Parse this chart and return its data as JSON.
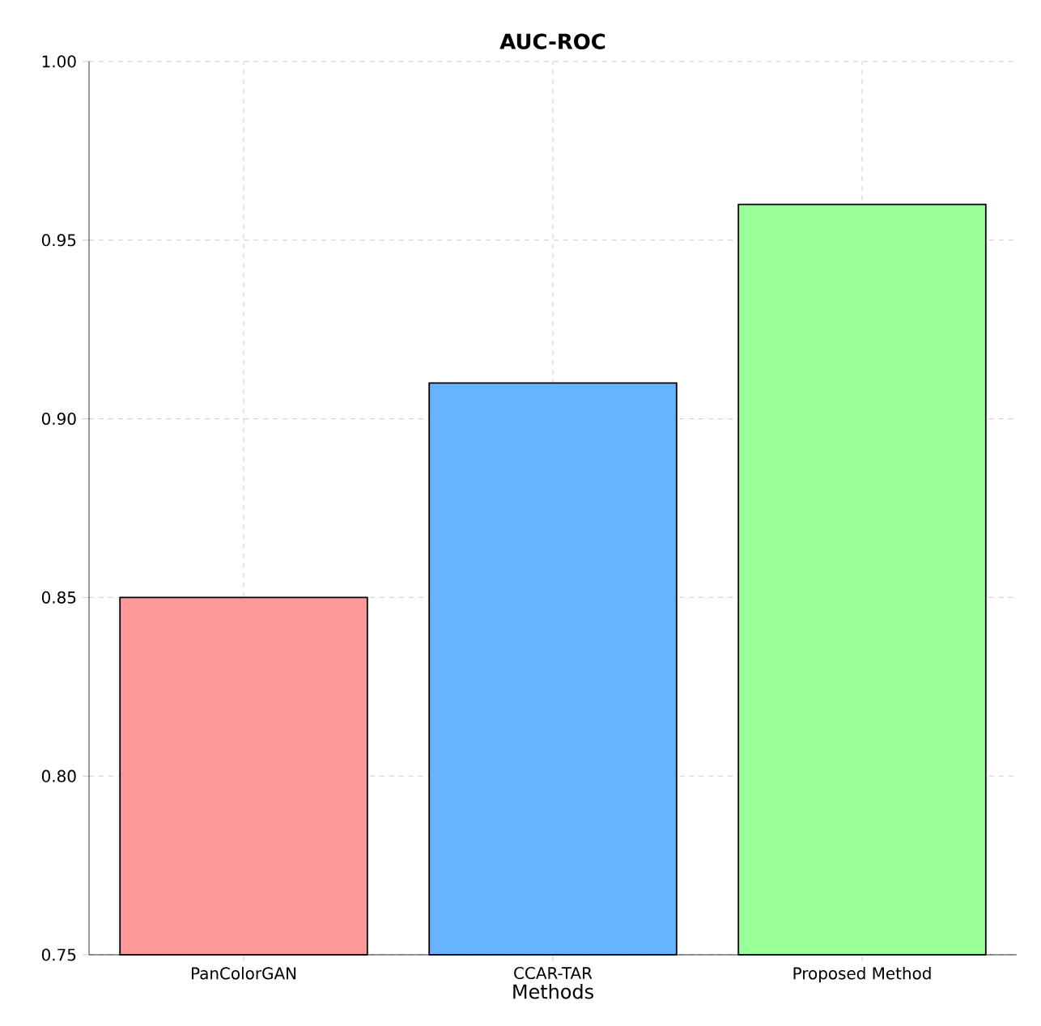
{
  "chart_data": {
    "type": "bar",
    "title": "AUC-ROC",
    "xlabel": "Methods",
    "categories": [
      "PanColorGAN",
      "CCAR-TAR",
      "Proposed Method"
    ],
    "values": [
      0.85,
      0.91,
      0.96
    ],
    "colors": [
      "#ff9999",
      "#66b3ff",
      "#99ff99"
    ],
    "ylim": [
      0.75,
      1.0
    ],
    "yticks": [
      {
        "value": 0.75,
        "label": "0.75"
      },
      {
        "value": 0.8,
        "label": "0.80"
      },
      {
        "value": 0.85,
        "label": "0.85"
      },
      {
        "value": 0.9,
        "label": "0.90"
      },
      {
        "value": 0.95,
        "label": "0.95"
      },
      {
        "value": 1.0,
        "label": "1.00"
      }
    ],
    "grid": true
  }
}
